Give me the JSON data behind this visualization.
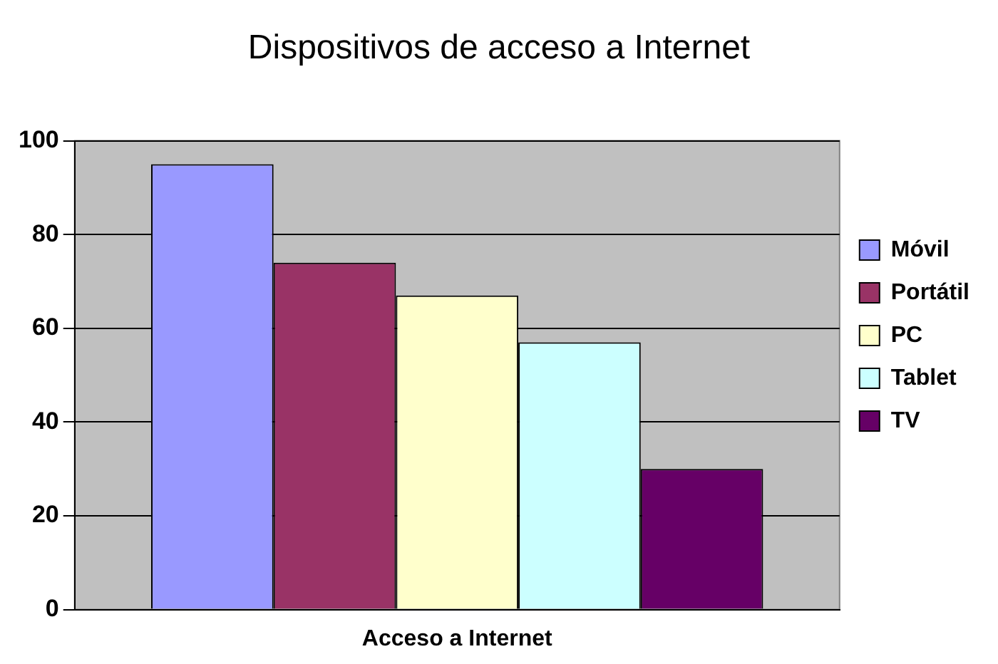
{
  "chart_data": {
    "type": "bar",
    "title": "Dispositivos de acceso a Internet",
    "categories": [
      "Acceso a Internet"
    ],
    "series": [
      {
        "name": "Móvil",
        "color": "#9999ff",
        "values": [
          95
        ]
      },
      {
        "name": "Portátil",
        "color": "#993366",
        "values": [
          74
        ]
      },
      {
        "name": "PC",
        "color": "#ffffcc",
        "values": [
          67
        ]
      },
      {
        "name": "Tablet",
        "color": "#ccffff",
        "values": [
          57
        ]
      },
      {
        "name": "TV",
        "color": "#660066",
        "values": [
          30
        ]
      }
    ],
    "ylim": [
      0,
      100
    ],
    "yticks": [
      0,
      20,
      40,
      60,
      80,
      100
    ],
    "grid": "y",
    "legend": "right"
  }
}
